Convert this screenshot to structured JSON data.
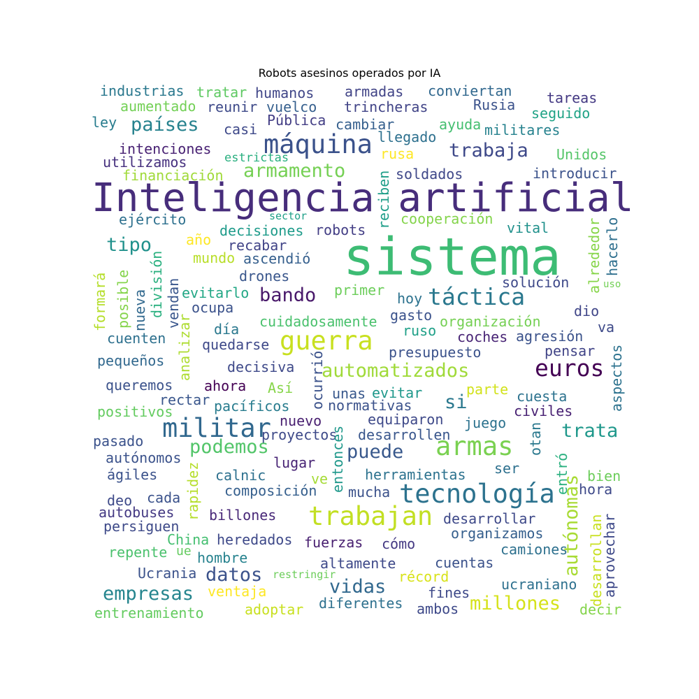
{
  "title": "Robots asesinos operados por IA",
  "words": [
    {
      "text": "Inteligencia artificial",
      "color": "#472d7b"
    },
    {
      "text": "sistema",
      "color": "#3dbc74"
    },
    {
      "text": "máquina",
      "color": "#3b528b"
    },
    {
      "text": "guerra",
      "color": "#c8e020"
    },
    {
      "text": "militar",
      "color": "#31688e"
    },
    {
      "text": "armas",
      "color": "#7ad151"
    },
    {
      "text": "tecnología",
      "color": "#2c728e"
    },
    {
      "text": "trabajan",
      "color": "#c2df23"
    },
    {
      "text": "táctica",
      "color": "#2a788e"
    },
    {
      "text": "euros",
      "color": "#440154"
    },
    {
      "text": "automatizados",
      "color": "#a0da39"
    },
    {
      "text": "países",
      "color": "#26828e"
    },
    {
      "text": "trabaja",
      "color": "#3e4989"
    },
    {
      "text": "armamento",
      "color": "#75d054"
    },
    {
      "text": "bando",
      "color": "#48186a"
    },
    {
      "text": "tipo",
      "color": "#21918c"
    },
    {
      "text": "podemos",
      "color": "#52c569"
    },
    {
      "text": "puede",
      "color": "#38588c"
    },
    {
      "text": "trata",
      "color": "#1f988b"
    },
    {
      "text": "empresas",
      "color": "#25858e"
    },
    {
      "text": "datos",
      "color": "#3b528b"
    },
    {
      "text": "vidas",
      "color": "#31688e"
    },
    {
      "text": "millones",
      "color": "#d5e21a"
    },
    {
      "text": "autónomas",
      "color": "#a8db34"
    },
    {
      "text": "industrias",
      "color": "#2a788e"
    },
    {
      "text": "tratar",
      "color": "#5ec962"
    },
    {
      "text": "humanos",
      "color": "#404688"
    },
    {
      "text": "armadas",
      "color": "#414487"
    },
    {
      "text": "conviertan",
      "color": "#31688e"
    },
    {
      "text": "tareas",
      "color": "#443983"
    },
    {
      "text": "aumentado",
      "color": "#73d056"
    },
    {
      "text": "reunir",
      "color": "#3e4a89"
    },
    {
      "text": "vuelco",
      "color": "#355f8d"
    },
    {
      "text": "trincheras",
      "color": "#414487"
    },
    {
      "text": "Rusia",
      "color": "#3b528b"
    },
    {
      "text": "seguido",
      "color": "#20a386"
    },
    {
      "text": "ley",
      "color": "#287c8e"
    },
    {
      "text": "casi",
      "color": "#3e4989"
    },
    {
      "text": "Pública",
      "color": "#433e85"
    },
    {
      "text": "cambiar",
      "color": "#355f8d"
    },
    {
      "text": "ayuda",
      "color": "#44bf70"
    },
    {
      "text": "militares",
      "color": "#26828e"
    },
    {
      "text": "llegado",
      "color": "#2d708e"
    },
    {
      "text": "intenciones",
      "color": "#482173"
    },
    {
      "text": "estrictas",
      "color": "#29af7f"
    },
    {
      "text": "rusa",
      "color": "#fde725"
    },
    {
      "text": "Unidos",
      "color": "#54c568"
    },
    {
      "text": "utilizamos",
      "color": "#46307e"
    },
    {
      "text": "financiación",
      "color": "#a0da39"
    },
    {
      "text": "reciben",
      "color": "#1f9e89"
    },
    {
      "text": "soldados",
      "color": "#3f4889"
    },
    {
      "text": "introducir",
      "color": "#3b528b"
    },
    {
      "text": "sector",
      "color": "#1fa088"
    },
    {
      "text": "ejército",
      "color": "#2d708e"
    },
    {
      "text": "cooperación",
      "color": "#84d44b"
    },
    {
      "text": "decisiones",
      "color": "#1e9b8a"
    },
    {
      "text": "robots",
      "color": "#433e85"
    },
    {
      "text": "vital",
      "color": "#21918c"
    },
    {
      "text": "alrededor",
      "color": "#86d549"
    },
    {
      "text": "hacerlo",
      "color": "#2e6f8e"
    },
    {
      "text": "año",
      "color": "#fde725"
    },
    {
      "text": "recabar",
      "color": "#414487"
    },
    {
      "text": "mundo",
      "color": "#b8de29"
    },
    {
      "text": "ascendió",
      "color": "#355f8d"
    },
    {
      "text": "formará",
      "color": "#b5de2b"
    },
    {
      "text": "posible",
      "color": "#84d44b"
    },
    {
      "text": "nueva",
      "color": "#31688e"
    },
    {
      "text": "división",
      "color": "#2ab07f"
    },
    {
      "text": "vendan",
      "color": "#39568c"
    },
    {
      "text": "drones",
      "color": "#39568c"
    },
    {
      "text": "solución",
      "color": "#3e4989"
    },
    {
      "text": "uso",
      "color": "#73d056"
    },
    {
      "text": "evitarlo",
      "color": "#22a785"
    },
    {
      "text": "primer",
      "color": "#6ccd5a"
    },
    {
      "text": "hoy",
      "color": "#2c728e"
    },
    {
      "text": "ocupa",
      "color": "#3b528b"
    },
    {
      "text": "dio",
      "color": "#404688"
    },
    {
      "text": "analizar",
      "color": "#addc30"
    },
    {
      "text": "día",
      "color": "#2a788e"
    },
    {
      "text": "cuidadosamente",
      "color": "#4ac16d"
    },
    {
      "text": "gasto",
      "color": "#3b528b"
    },
    {
      "text": "organización",
      "color": "#75d054"
    },
    {
      "text": "ruso",
      "color": "#1fa088"
    },
    {
      "text": "va",
      "color": "#3e4a89"
    },
    {
      "text": "cuenten",
      "color": "#2d708e"
    },
    {
      "text": "agresión",
      "color": "#3b528b"
    },
    {
      "text": "coches",
      "color": "#482475"
    },
    {
      "text": "quedarse",
      "color": "#3e4989"
    },
    {
      "text": "presupuesto",
      "color": "#3b528b"
    },
    {
      "text": "pensar",
      "color": "#414487"
    },
    {
      "text": "pequeños",
      "color": "#31688e"
    },
    {
      "text": "ocurrió",
      "color": "#3b528b"
    },
    {
      "text": "aspectos",
      "color": "#2c728e"
    },
    {
      "text": "decisiva",
      "color": "#3e4989"
    },
    {
      "text": "queremos",
      "color": "#3b528b"
    },
    {
      "text": "ahora",
      "color": "#440154"
    },
    {
      "text": "Así",
      "color": "#86d549"
    },
    {
      "text": "unas",
      "color": "#38588c"
    },
    {
      "text": "evitar",
      "color": "#1f988b"
    },
    {
      "text": "parte",
      "color": "#d2e21b"
    },
    {
      "text": "cuesta",
      "color": "#2c728e"
    },
    {
      "text": "si",
      "color": "#2a788e"
    },
    {
      "text": "rectar",
      "color": "#39568c"
    },
    {
      "text": "pacíficos",
      "color": "#287c8e"
    },
    {
      "text": "normativas",
      "color": "#3b528b"
    },
    {
      "text": "civiles",
      "color": "#482173"
    },
    {
      "text": "positivos",
      "color": "#63cb5f"
    },
    {
      "text": "nuevo",
      "color": "#481f70"
    },
    {
      "text": "equiparon",
      "color": "#3e4989"
    },
    {
      "text": "juego",
      "color": "#2c728e"
    },
    {
      "text": "pasado",
      "color": "#3b528b"
    },
    {
      "text": "proyectos",
      "color": "#3e4a89"
    },
    {
      "text": "desarrollen",
      "color": "#39568c"
    },
    {
      "text": "otan",
      "color": "#2a788e"
    },
    {
      "text": "autónomos",
      "color": "#3b528b"
    },
    {
      "text": "entonces",
      "color": "#1f988b"
    },
    {
      "text": "lugar",
      "color": "#482475"
    },
    {
      "text": "ser",
      "color": "#2d708e"
    },
    {
      "text": "rapidez",
      "color": "#b5de2b"
    },
    {
      "text": "calnic",
      "color": "#2d708e"
    },
    {
      "text": "ve",
      "color": "#a5db36"
    },
    {
      "text": "herramientas",
      "color": "#2c728e"
    },
    {
      "text": "entró",
      "color": "#2ab07f"
    },
    {
      "text": "ágiles",
      "color": "#3b528b"
    },
    {
      "text": "bien",
      "color": "#6ccd5a"
    },
    {
      "text": "composición",
      "color": "#355f8d"
    },
    {
      "text": "mucha",
      "color": "#3b528b"
    },
    {
      "text": "hora",
      "color": "#3e4989"
    },
    {
      "text": "deo",
      "color": "#3e4a89"
    },
    {
      "text": "cada",
      "color": "#3b528b"
    },
    {
      "text": "autobuses",
      "color": "#443983"
    },
    {
      "text": "billones",
      "color": "#482878"
    },
    {
      "text": "desarrollar",
      "color": "#3e4989"
    },
    {
      "text": "desarrollan",
      "color": "#c8e020"
    },
    {
      "text": "persiguen",
      "color": "#3e4a89"
    },
    {
      "text": "organizamos",
      "color": "#355f8d"
    },
    {
      "text": "aprovechar",
      "color": "#3e4989"
    },
    {
      "text": "China",
      "color": "#44bf70"
    },
    {
      "text": "heredados",
      "color": "#3e4989"
    },
    {
      "text": "fuerzas",
      "color": "#481f70"
    },
    {
      "text": "cómo",
      "color": "#443983"
    },
    {
      "text": "camiones",
      "color": "#2d708e"
    },
    {
      "text": "repente",
      "color": "#4ac16d"
    },
    {
      "text": "ue",
      "color": "#63cb5f"
    },
    {
      "text": "hombre",
      "color": "#26828e"
    },
    {
      "text": "altamente",
      "color": "#3e4989"
    },
    {
      "text": "cuentas",
      "color": "#3b528b"
    },
    {
      "text": "Ucrania",
      "color": "#3b528b"
    },
    {
      "text": "restringir",
      "color": "#6ccd5a"
    },
    {
      "text": "récord",
      "color": "#d8e219"
    },
    {
      "text": "ucraniano",
      "color": "#2d708e"
    },
    {
      "text": "ventaja",
      "color": "#fde725"
    },
    {
      "text": "fines",
      "color": "#3e4989"
    },
    {
      "text": "diferentes",
      "color": "#2d708e"
    },
    {
      "text": "entrenamiento",
      "color": "#63cb5f"
    },
    {
      "text": "adoptar",
      "color": "#c8e020"
    },
    {
      "text": "ambos",
      "color": "#3e4989"
    },
    {
      "text": "decir",
      "color": "#84d44b"
    }
  ]
}
